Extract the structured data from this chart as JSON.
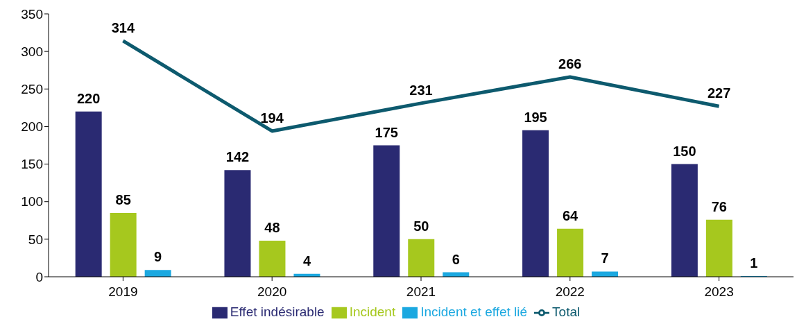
{
  "chart_data": {
    "type": "bar",
    "categories": [
      "2019",
      "2020",
      "2021",
      "2022",
      "2023"
    ],
    "series": [
      {
        "name": "Effet indésirable",
        "color": "#2a2a72",
        "values": [
          220,
          142,
          175,
          195,
          150
        ]
      },
      {
        "name": "Incident",
        "color": "#a6c81e",
        "values": [
          85,
          48,
          50,
          64,
          76
        ]
      },
      {
        "name": "Incident et effet lié",
        "color": "#1ba8e0",
        "values": [
          9,
          4,
          6,
          7,
          1
        ]
      },
      {
        "name": "Total",
        "type": "line",
        "color": "#0d5a6e",
        "values": [
          314,
          194,
          231,
          266,
          227
        ]
      }
    ],
    "ylim": [
      0,
      350
    ],
    "yticks": [
      0,
      50,
      100,
      150,
      200,
      250,
      300,
      350
    ],
    "grid": false,
    "legend": "bottom",
    "data_labels": true,
    "marker": "none",
    "line_style": "solid"
  }
}
